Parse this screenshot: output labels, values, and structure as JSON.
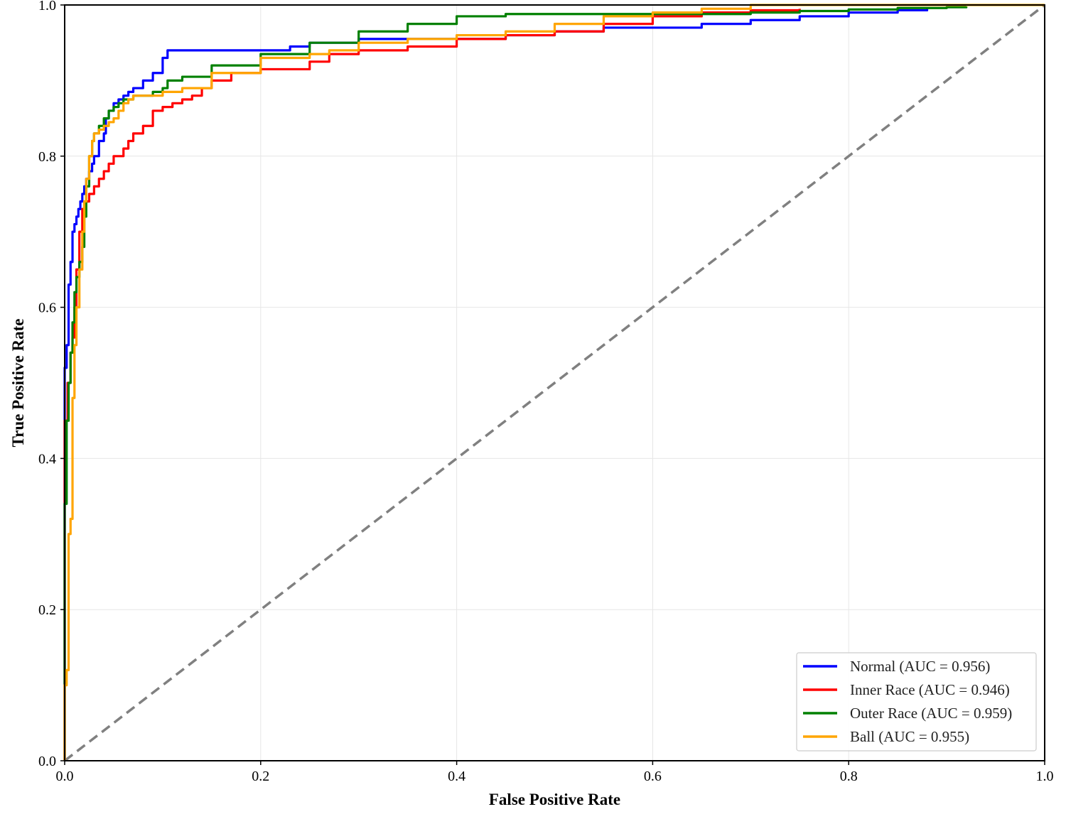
{
  "chart_data": {
    "type": "line",
    "title": "",
    "xlabel": "False Positive Rate",
    "ylabel": "True Positive Rate",
    "xlim": [
      0.0,
      1.0
    ],
    "ylim": [
      0.0,
      1.0
    ],
    "xticks": [
      "0.0",
      "0.2",
      "0.4",
      "0.6",
      "0.8",
      "1.0"
    ],
    "yticks": [
      "0.0",
      "0.2",
      "0.4",
      "0.6",
      "0.8",
      "1.0"
    ],
    "grid": true,
    "legend_position": "lower-right",
    "reference_line": {
      "x": [
        0,
        1
      ],
      "y": [
        0,
        1
      ],
      "color": "#808080",
      "style": "dashed"
    },
    "series": [
      {
        "name": "Normal (AUC = 0.956)",
        "color": "#0000ff",
        "x": [
          0,
          0,
          0.002,
          0.004,
          0.006,
          0.008,
          0.01,
          0.012,
          0.014,
          0.016,
          0.018,
          0.02,
          0.022,
          0.025,
          0.028,
          0.03,
          0.035,
          0.04,
          0.042,
          0.045,
          0.05,
          0.055,
          0.06,
          0.065,
          0.07,
          0.08,
          0.09,
          0.1,
          0.105,
          0.15,
          0.2,
          0.23,
          0.25,
          0.3,
          0.35,
          0.4,
          0.45,
          0.5,
          0.55,
          0.6,
          0.65,
          0.7,
          0.75,
          0.8,
          0.85,
          0.88
        ],
        "y": [
          0,
          0.52,
          0.55,
          0.63,
          0.66,
          0.7,
          0.71,
          0.72,
          0.73,
          0.74,
          0.75,
          0.76,
          0.77,
          0.78,
          0.79,
          0.8,
          0.82,
          0.83,
          0.85,
          0.86,
          0.87,
          0.875,
          0.88,
          0.885,
          0.89,
          0.9,
          0.91,
          0.93,
          0.94,
          0.94,
          0.94,
          0.945,
          0.95,
          0.955,
          0.955,
          0.955,
          0.96,
          0.965,
          0.97,
          0.97,
          0.975,
          0.98,
          0.985,
          0.99,
          0.993,
          0.995
        ]
      },
      {
        "name": "Inner Race (AUC = 0.946)",
        "color": "#ff0000",
        "x": [
          0,
          0,
          0.003,
          0.006,
          0.008,
          0.01,
          0.012,
          0.015,
          0.018,
          0.02,
          0.025,
          0.03,
          0.035,
          0.04,
          0.045,
          0.05,
          0.06,
          0.065,
          0.07,
          0.08,
          0.09,
          0.1,
          0.11,
          0.12,
          0.13,
          0.14,
          0.15,
          0.17,
          0.2,
          0.25,
          0.27,
          0.3,
          0.35,
          0.4,
          0.45,
          0.5,
          0.55,
          0.6,
          0.65,
          0.7,
          0.75
        ],
        "y": [
          0,
          0.45,
          0.5,
          0.54,
          0.56,
          0.6,
          0.65,
          0.7,
          0.73,
          0.74,
          0.75,
          0.76,
          0.77,
          0.78,
          0.79,
          0.8,
          0.81,
          0.82,
          0.83,
          0.84,
          0.86,
          0.865,
          0.87,
          0.875,
          0.88,
          0.89,
          0.9,
          0.91,
          0.915,
          0.925,
          0.935,
          0.94,
          0.945,
          0.955,
          0.96,
          0.965,
          0.975,
          0.985,
          0.99,
          0.993,
          0.995
        ]
      },
      {
        "name": "Outer Race (AUC = 0.959)",
        "color": "#008000",
        "x": [
          0,
          0,
          0.002,
          0.004,
          0.006,
          0.008,
          0.01,
          0.012,
          0.015,
          0.018,
          0.02,
          0.022,
          0.025,
          0.028,
          0.03,
          0.035,
          0.04,
          0.045,
          0.05,
          0.055,
          0.06,
          0.07,
          0.08,
          0.09,
          0.1,
          0.105,
          0.12,
          0.15,
          0.2,
          0.25,
          0.3,
          0.35,
          0.4,
          0.45,
          0.5,
          0.55,
          0.6,
          0.7,
          0.75,
          0.8,
          0.85,
          0.9,
          0.92
        ],
        "y": [
          0,
          0.34,
          0.45,
          0.5,
          0.54,
          0.58,
          0.62,
          0.64,
          0.66,
          0.68,
          0.72,
          0.76,
          0.8,
          0.82,
          0.83,
          0.84,
          0.85,
          0.86,
          0.865,
          0.87,
          0.875,
          0.88,
          0.88,
          0.885,
          0.89,
          0.9,
          0.905,
          0.92,
          0.935,
          0.95,
          0.965,
          0.975,
          0.985,
          0.988,
          0.988,
          0.988,
          0.988,
          0.99,
          0.992,
          0.994,
          0.996,
          0.997,
          0.998
        ]
      },
      {
        "name": "Ball (AUC = 0.955)",
        "color": "#ffa500",
        "x": [
          0,
          0,
          0.002,
          0.004,
          0.006,
          0.008,
          0.01,
          0.012,
          0.015,
          0.018,
          0.02,
          0.022,
          0.025,
          0.028,
          0.03,
          0.035,
          0.04,
          0.045,
          0.05,
          0.055,
          0.06,
          0.065,
          0.07,
          0.08,
          0.09,
          0.1,
          0.12,
          0.15,
          0.2,
          0.25,
          0.27,
          0.3,
          0.35,
          0.4,
          0.45,
          0.5,
          0.55,
          0.6,
          0.65,
          0.7,
          0.8,
          0.9,
          1.0
        ],
        "y": [
          0,
          0.1,
          0.12,
          0.3,
          0.32,
          0.48,
          0.55,
          0.6,
          0.65,
          0.7,
          0.74,
          0.77,
          0.8,
          0.82,
          0.83,
          0.835,
          0.84,
          0.845,
          0.85,
          0.86,
          0.87,
          0.875,
          0.88,
          0.88,
          0.88,
          0.885,
          0.89,
          0.91,
          0.93,
          0.935,
          0.94,
          0.95,
          0.955,
          0.96,
          0.965,
          0.975,
          0.985,
          0.99,
          0.995,
          1.0,
          1.0,
          1.0,
          1.0
        ]
      }
    ]
  }
}
